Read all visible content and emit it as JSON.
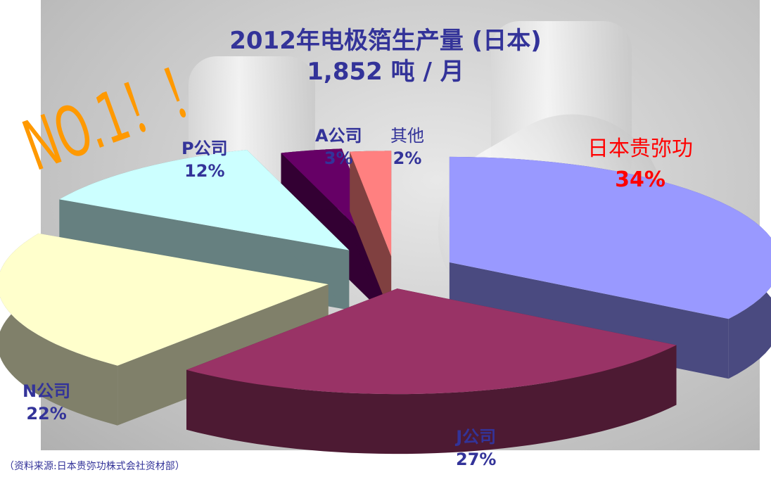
{
  "chart_data": {
    "type": "pie",
    "style": "3d-exploded",
    "title": "2012年电极箔生产量 (日本)",
    "subtitle": "1,852 吨 / 月",
    "slices": [
      {
        "label": "日本贵弥功",
        "value": 34,
        "value_label": "34%",
        "color": "#9999ff",
        "side": "#4a4a80",
        "label_color": "#ff0000"
      },
      {
        "label": "J公司",
        "value": 27,
        "value_label": "27%",
        "color": "#993366",
        "side": "#4d1a33",
        "label_color": "#333399"
      },
      {
        "label": "N公司",
        "value": 22,
        "value_label": "22%",
        "color": "#ffffcc",
        "side": "#80806a",
        "label_color": "#333399"
      },
      {
        "label": "P公司",
        "value": 12,
        "value_label": "12%",
        "color": "#ccffff",
        "side": "#668080",
        "label_color": "#333399"
      },
      {
        "label": "A公司",
        "value": 3,
        "value_label": "3%",
        "color": "#660066",
        "side": "#330033",
        "label_color": "#333399"
      },
      {
        "label": "其他",
        "value": 2,
        "value_label": "2%",
        "color": "#ff8080",
        "side": "#804040",
        "label_color": "#333399"
      }
    ]
  },
  "annotation": "NO.1！！",
  "source": "（资料来源:日本贵弥功株式会社资材部）"
}
